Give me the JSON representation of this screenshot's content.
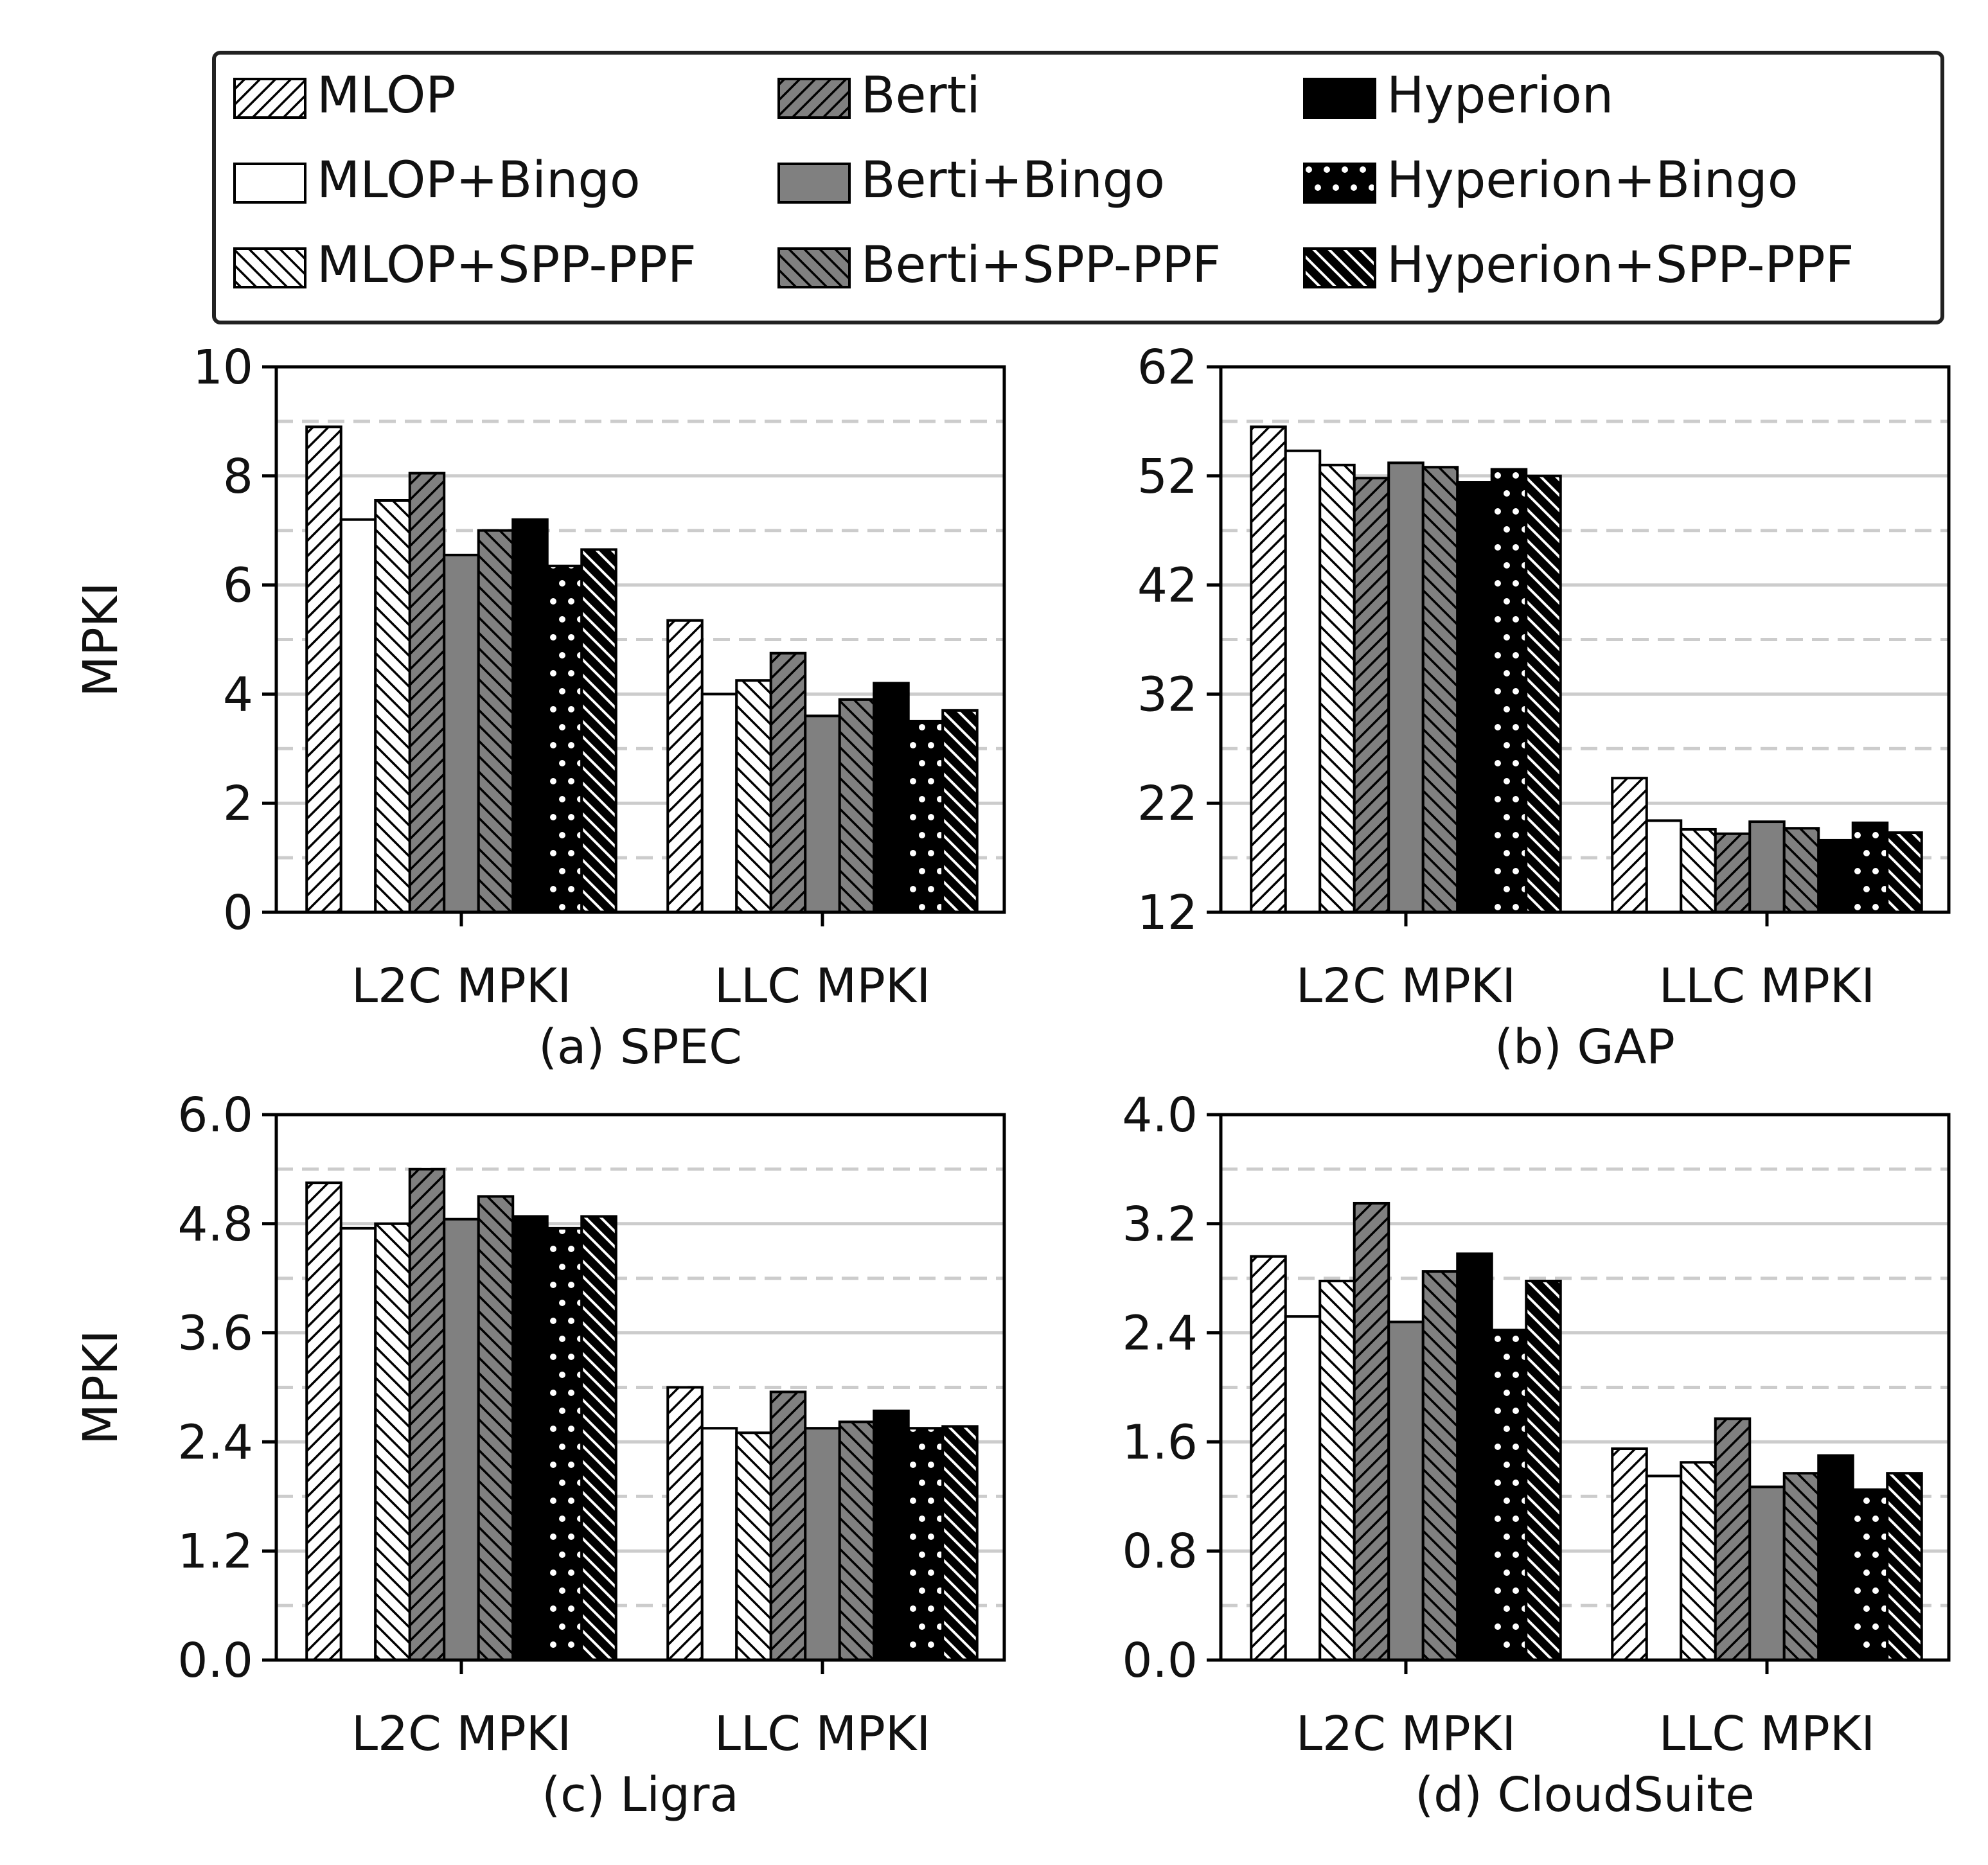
{
  "legend": {
    "entries": [
      {
        "name": "MLOP",
        "fill": "#ffffff",
        "pattern": "fwd-hatch"
      },
      {
        "name": "MLOP+Bingo",
        "fill": "#ffffff",
        "pattern": "none"
      },
      {
        "name": "MLOP+SPP-PPF",
        "fill": "#ffffff",
        "pattern": "back-hatch"
      },
      {
        "name": "Berti",
        "fill": "#808080",
        "pattern": "fwd-hatch"
      },
      {
        "name": "Berti+Bingo",
        "fill": "#808080",
        "pattern": "none"
      },
      {
        "name": "Berti+SPP-PPF",
        "fill": "#808080",
        "pattern": "back-hatch"
      },
      {
        "name": "Hyperion",
        "fill": "#000000",
        "pattern": "none"
      },
      {
        "name": "Hyperion+Bingo",
        "fill": "#000000",
        "pattern": "dots"
      },
      {
        "name": "Hyperion+SPP-PPF",
        "fill": "#000000",
        "pattern": "back-hatch-white"
      }
    ],
    "placement": "top-center, 3 columns"
  },
  "chart_data": [
    {
      "type": "bar",
      "title": "(a) SPEC",
      "ylabel": "MPKI",
      "xlabel": "",
      "categories": [
        "L2C MPKI",
        "LLC MPKI"
      ],
      "ylim": [
        0,
        10
      ],
      "yticks": [
        "0",
        "2",
        "4",
        "6",
        "8",
        "10"
      ],
      "grid": "horizontal, solid at major ticks, dashed at minor ticks",
      "series": [
        {
          "name": "MLOP",
          "values": [
            8.9,
            5.35
          ]
        },
        {
          "name": "MLOP+Bingo",
          "values": [
            7.2,
            4.0
          ]
        },
        {
          "name": "MLOP+SPP-PPF",
          "values": [
            7.55,
            4.25
          ]
        },
        {
          "name": "Berti",
          "values": [
            8.05,
            4.75
          ]
        },
        {
          "name": "Berti+Bingo",
          "values": [
            6.55,
            3.6
          ]
        },
        {
          "name": "Berti+SPP-PPF",
          "values": [
            7.0,
            3.9
          ]
        },
        {
          "name": "Hyperion",
          "values": [
            7.2,
            4.2
          ]
        },
        {
          "name": "Hyperion+Bingo",
          "values": [
            6.35,
            3.5
          ]
        },
        {
          "name": "Hyperion+SPP-PPF",
          "values": [
            6.65,
            3.7
          ]
        }
      ]
    },
    {
      "type": "bar",
      "title": "(b) GAP",
      "ylabel": "",
      "xlabel": "",
      "categories": [
        "L2C MPKI",
        "LLC MPKI"
      ],
      "ylim": [
        12,
        62
      ],
      "yticks": [
        "12",
        "22",
        "32",
        "42",
        "52",
        "62"
      ],
      "grid": "horizontal, solid at major ticks, dashed at minor ticks",
      "series": [
        {
          "name": "MLOP",
          "values": [
            56.5,
            24.3
          ]
        },
        {
          "name": "MLOP+Bingo",
          "values": [
            54.3,
            20.4
          ]
        },
        {
          "name": "MLOP+SPP-PPF",
          "values": [
            53.0,
            19.6
          ]
        },
        {
          "name": "Berti",
          "values": [
            51.8,
            19.2
          ]
        },
        {
          "name": "Berti+Bingo",
          "values": [
            53.2,
            20.3
          ]
        },
        {
          "name": "Berti+SPP-PPF",
          "values": [
            52.8,
            19.7
          ]
        },
        {
          "name": "Hyperion",
          "values": [
            51.4,
            18.6
          ]
        },
        {
          "name": "Hyperion+Bingo",
          "values": [
            52.6,
            20.2
          ]
        },
        {
          "name": "Hyperion+SPP-PPF",
          "values": [
            52.0,
            19.3
          ]
        }
      ]
    },
    {
      "type": "bar",
      "title": "(c) Ligra",
      "ylabel": "MPKI",
      "xlabel": "",
      "categories": [
        "L2C MPKI",
        "LLC MPKI"
      ],
      "ylim": [
        0,
        6
      ],
      "yticks": [
        "0.0",
        "1.2",
        "2.4",
        "3.6",
        "4.8",
        "6.0"
      ],
      "grid": "horizontal, solid at major ticks, dashed at minor ticks",
      "series": [
        {
          "name": "MLOP",
          "values": [
            5.25,
            3.0
          ]
        },
        {
          "name": "MLOP+Bingo",
          "values": [
            4.75,
            2.55
          ]
        },
        {
          "name": "MLOP+SPP-PPF",
          "values": [
            4.8,
            2.5
          ]
        },
        {
          "name": "Berti",
          "values": [
            5.4,
            2.95
          ]
        },
        {
          "name": "Berti+Bingo",
          "values": [
            4.85,
            2.55
          ]
        },
        {
          "name": "Berti+SPP-PPF",
          "values": [
            5.1,
            2.62
          ]
        },
        {
          "name": "Hyperion",
          "values": [
            4.88,
            2.74
          ]
        },
        {
          "name": "Hyperion+Bingo",
          "values": [
            4.75,
            2.55
          ]
        },
        {
          "name": "Hyperion+SPP-PPF",
          "values": [
            4.88,
            2.57
          ]
        }
      ]
    },
    {
      "type": "bar",
      "title": "(d) CloudSuite",
      "ylabel": "",
      "xlabel": "",
      "categories": [
        "L2C MPKI",
        "LLC MPKI"
      ],
      "ylim": [
        0,
        4
      ],
      "yticks": [
        "0.0",
        "0.8",
        "1.6",
        "2.4",
        "3.2",
        "4.0"
      ],
      "grid": "horizontal, solid at major ticks, dashed at minor ticks",
      "series": [
        {
          "name": "MLOP",
          "values": [
            2.96,
            1.55
          ]
        },
        {
          "name": "MLOP+Bingo",
          "values": [
            2.52,
            1.35
          ]
        },
        {
          "name": "MLOP+SPP-PPF",
          "values": [
            2.78,
            1.45
          ]
        },
        {
          "name": "Berti",
          "values": [
            3.35,
            1.77
          ]
        },
        {
          "name": "Berti+Bingo",
          "values": [
            2.48,
            1.27
          ]
        },
        {
          "name": "Berti+SPP-PPF",
          "values": [
            2.85,
            1.37
          ]
        },
        {
          "name": "Hyperion",
          "values": [
            2.98,
            1.5
          ]
        },
        {
          "name": "Hyperion+Bingo",
          "values": [
            2.42,
            1.25
          ]
        },
        {
          "name": "Hyperion+SPP-PPF",
          "values": [
            2.78,
            1.37
          ]
        }
      ]
    }
  ]
}
